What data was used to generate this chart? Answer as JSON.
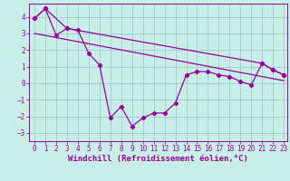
{
  "xlabel": "Windchill (Refroidissement éolien,°C)",
  "bg_color": "#c8eee8",
  "grid_color": "#a0cccc",
  "line_color": "#990099",
  "xlim": [
    -0.5,
    23.3
  ],
  "ylim": [
    -3.5,
    4.8
  ],
  "yticks": [
    -3,
    -2,
    -1,
    0,
    1,
    2,
    3,
    4
  ],
  "xticks": [
    0,
    1,
    2,
    3,
    4,
    5,
    6,
    7,
    8,
    9,
    10,
    11,
    12,
    13,
    14,
    15,
    16,
    17,
    18,
    19,
    20,
    21,
    22,
    23
  ],
  "series1_x": [
    0,
    1,
    2,
    3,
    4,
    5,
    6,
    7,
    8,
    9,
    10,
    11,
    12,
    13,
    14,
    15,
    16,
    17,
    18,
    19,
    20,
    21,
    22,
    23
  ],
  "series1_y": [
    3.9,
    4.5,
    2.9,
    3.3,
    3.2,
    1.8,
    1.1,
    -2.1,
    -1.4,
    -2.6,
    -2.1,
    -1.8,
    -1.8,
    -1.2,
    0.5,
    0.7,
    0.7,
    0.5,
    0.4,
    0.1,
    -0.1,
    1.2,
    0.8,
    0.5
  ],
  "envelope_x": [
    0,
    1,
    3,
    21,
    22,
    23
  ],
  "envelope_y": [
    3.9,
    4.5,
    3.3,
    1.2,
    0.8,
    0.5
  ],
  "trend_x": [
    0,
    23
  ],
  "trend_y": [
    3.0,
    0.15
  ],
  "xlabel_fontsize": 6.5,
  "tick_fontsize": 5.5
}
